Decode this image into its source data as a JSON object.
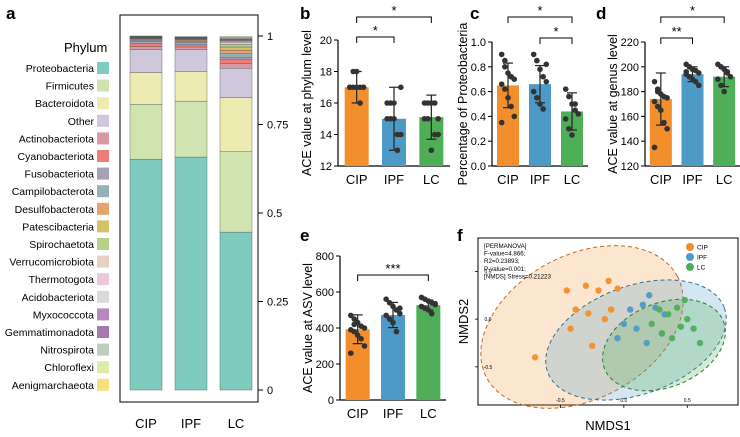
{
  "colors": {
    "CIP": "#F28E2B",
    "IPF": "#4E9AC6",
    "LC": "#4FAE58"
  },
  "chart_data": [
    {
      "panel": "a",
      "type": "bar",
      "stacked": true,
      "legend_title": "Phylum",
      "categories": [
        "CIP",
        "IPF",
        "LC"
      ],
      "ylim": [
        0,
        1
      ],
      "yticks": [
        0,
        0.25,
        0.5,
        0.75,
        1
      ],
      "ytick_labels": [
        "0",
        "0.25",
        "0.5",
        "0.75",
        "1"
      ],
      "series": [
        {
          "name": "Proteobacteria",
          "color": "#7FCBC0",
          "values": [
            0.652,
            0.658,
            0.446
          ]
        },
        {
          "name": "Firmicutes",
          "color": "#CFE4B0",
          "values": [
            0.155,
            0.158,
            0.227
          ]
        },
        {
          "name": "Bacteroidota",
          "color": "#EDEBB2",
          "values": [
            0.09,
            0.083,
            0.153
          ]
        },
        {
          "name": "Other",
          "color": "#CFC8DC",
          "values": [
            0.065,
            0.062,
            0.083
          ]
        },
        {
          "name": "Actinobacteriota",
          "color": "#D999A3",
          "values": [
            0.008,
            0.008,
            0.013
          ]
        },
        {
          "name": "Cyanobacteriota",
          "color": "#EC7E76",
          "values": [
            0.008,
            0.006,
            0.011
          ]
        },
        {
          "name": "Fusobacteriota",
          "color": "#A8A0B8",
          "values": [
            0.006,
            0.006,
            0.007
          ]
        },
        {
          "name": "Campilobacterota",
          "color": "#97AFB6",
          "values": [
            0.004,
            0.004,
            0.01
          ]
        },
        {
          "name": "Desulfobacterota",
          "color": "#E5A56A",
          "values": [
            0.002,
            0.003,
            0.01
          ]
        },
        {
          "name": "Patescibacteria",
          "color": "#D6C06A",
          "values": [
            0.002,
            0.002,
            0.009
          ]
        },
        {
          "name": "Spirochaetota",
          "color": "#B7D18B",
          "values": [
            0.001,
            0.001,
            0.007
          ]
        },
        {
          "name": "Verrucomicrobiota",
          "color": "#E8D1C2",
          "values": [
            0.001,
            0.001,
            0.005
          ]
        },
        {
          "name": "Thermotogota",
          "color": "#EBC9DC",
          "values": [
            0.001,
            0.001,
            0.003
          ]
        },
        {
          "name": "Acidobacteriota",
          "color": "#D9D9D9",
          "values": [
            0.001,
            0.001,
            0.003
          ]
        },
        {
          "name": "Myxococcota",
          "color": "#BA87BE",
          "values": [
            0.001,
            0.001,
            0.002
          ]
        },
        {
          "name": "Gemmatimonadota",
          "color": "#A67AAE",
          "values": [
            0.001,
            0.001,
            0.002
          ]
        },
        {
          "name": "Nitrospirota",
          "color": "#BFCCC0",
          "values": [
            0.001,
            0.001,
            0.002
          ]
        },
        {
          "name": "Chloroflexi",
          "color": "#DDEBA9",
          "values": [
            0.001,
            0.001,
            0.002
          ]
        },
        {
          "name": "Aenigmarchaeota",
          "color": "#F8E07F",
          "values": [
            0.0,
            0.0,
            0.003
          ]
        }
      ]
    },
    {
      "panel": "b",
      "type": "bar",
      "ylabel": "ACE value at phylum level",
      "categories": [
        "CIP",
        "IPF",
        "LC"
      ],
      "values": [
        17.0,
        15.0,
        15.1
      ],
      "errors": [
        1.0,
        2.0,
        1.4
      ],
      "ylim": [
        12,
        20
      ],
      "yticks": [
        12,
        14,
        16,
        18,
        20
      ],
      "ytick_labels": [
        "12",
        "14",
        "16",
        "18",
        "20"
      ],
      "points": [
        [
          17,
          17,
          17,
          17,
          17,
          17,
          18,
          18,
          16,
          17
        ],
        [
          15,
          15,
          15,
          14,
          14,
          16,
          16,
          16,
          13,
          17
        ],
        [
          15,
          16,
          16,
          14,
          14,
          16,
          15,
          13,
          16,
          15
        ]
      ],
      "sig": [
        {
          "from": 0,
          "to": 1,
          "label": "*"
        },
        {
          "from": 0,
          "to": 2,
          "label": "*"
        }
      ]
    },
    {
      "panel": "c",
      "type": "bar",
      "ylabel": "Percentage of Proteobacteria",
      "categories": [
        "CIP",
        "IPF",
        "LC"
      ],
      "values": [
        0.65,
        0.66,
        0.44
      ],
      "errors": [
        0.18,
        0.15,
        0.15
      ],
      "ylim": [
        0,
        1
      ],
      "yticks": [
        0,
        0.2,
        0.4,
        0.6,
        0.8,
        1
      ],
      "ytick_labels": [
        "0.0",
        "0.2",
        "0.4",
        "0.6",
        "0.8",
        "1.0"
      ],
      "points": [
        [
          0.9,
          0.8,
          0.75,
          0.72,
          0.7,
          0.66,
          0.62,
          0.55,
          0.48,
          0.4,
          0.35,
          0.85
        ],
        [
          0.9,
          0.85,
          0.78,
          0.72,
          0.68,
          0.6,
          0.55,
          0.5,
          0.46,
          0.82
        ],
        [
          0.62,
          0.56,
          0.5,
          0.45,
          0.42,
          0.38,
          0.3,
          0.25,
          0.5
        ]
      ],
      "sig": [
        {
          "from": 1,
          "to": 2,
          "label": "*"
        },
        {
          "from": 0,
          "to": 2,
          "label": "*"
        }
      ]
    },
    {
      "panel": "d",
      "type": "bar",
      "ylabel": "ACE value at genus level",
      "categories": [
        "CIP",
        "IPF",
        "LC"
      ],
      "values": [
        174,
        194,
        192
      ],
      "errors": [
        21,
        6,
        8
      ],
      "ylim": [
        120,
        220
      ],
      "yticks": [
        120,
        140,
        160,
        180,
        200,
        220
      ],
      "ytick_labels": [
        "120",
        "140",
        "160",
        "180",
        "200",
        "220"
      ],
      "points": [
        [
          188,
          182,
          178,
          176,
          175,
          172,
          168,
          165,
          155,
          150,
          135,
          180
        ],
        [
          202,
          200,
          198,
          197,
          195,
          194,
          192,
          190,
          188,
          185,
          196
        ],
        [
          202,
          200,
          198,
          195,
          192,
          190,
          185,
          180,
          196
        ]
      ],
      "sig": [
        {
          "from": 0,
          "to": 1,
          "label": "**"
        },
        {
          "from": 0,
          "to": 2,
          "label": "*"
        }
      ]
    },
    {
      "panel": "e",
      "type": "bar",
      "ylabel": "ACE value at ASV level",
      "categories": [
        "CIP",
        "IPF",
        "LC"
      ],
      "values": [
        393,
        472,
        527
      ],
      "errors": [
        80,
        70,
        28
      ],
      "ylim": [
        0,
        800
      ],
      "yticks": [
        0,
        200,
        400,
        600,
        800
      ],
      "ytick_labels": [
        "0",
        "200",
        "400",
        "600",
        "800"
      ],
      "points": [
        [
          470,
          450,
          430,
          410,
          400,
          390,
          380,
          360,
          340,
          300,
          260,
          420
        ],
        [
          560,
          540,
          520,
          500,
          480,
          470,
          450,
          430,
          380,
          510
        ],
        [
          570,
          560,
          550,
          540,
          530,
          520,
          510,
          500,
          480,
          535
        ]
      ],
      "sig": [
        {
          "from": 0,
          "to": 2,
          "label": "***"
        }
      ]
    },
    {
      "panel": "f",
      "type": "scatter",
      "xlabel": "NMDS1",
      "ylabel": "NMDS2",
      "stats": [
        "[PERMANOVA]",
        "F-value=4.866;",
        "R2=0.23893;",
        "P-value=0.001;",
        "[NMDS] Stress=0.21223"
      ],
      "xticks": [
        -0.5,
        0,
        0.5
      ],
      "xtick_labels": [
        "-0.5",
        "0.0",
        "0.5"
      ],
      "yticks": [
        0.5,
        0,
        -0.5
      ],
      "ytick_labels": [
        "0.5",
        "0.0",
        "-0.5"
      ],
      "xlim": [
        -1.15,
        0.9
      ],
      "ylim": [
        -0.9,
        0.85
      ],
      "series": [
        {
          "name": "CIP",
          "x": [
            -0.45,
            -0.3,
            -0.2,
            -0.12,
            -0.05,
            -0.38,
            -0.28,
            -0.15,
            -0.42,
            -0.1,
            -0.25,
            -0.7
          ],
          "y": [
            0.3,
            0.35,
            0.3,
            0.4,
            0.32,
            0.1,
            0.06,
            0.0,
            -0.1,
            0.1,
            -0.28,
            -0.4
          ]
        },
        {
          "name": "IPF",
          "x": [
            0.05,
            0.15,
            0.25,
            0.32,
            0.0,
            0.1,
            0.2,
            0.3,
            -0.05,
            0.18
          ],
          "y": [
            0.1,
            0.15,
            0.12,
            0.05,
            -0.05,
            -0.1,
            0.25,
            -0.15,
            -0.2,
            -0.25
          ]
        },
        {
          "name": "LC",
          "x": [
            0.28,
            0.35,
            0.42,
            0.5,
            0.55,
            0.3,
            0.38,
            0.45,
            0.6,
            0.22,
            0.48
          ],
          "y": [
            0.1,
            0.05,
            0.12,
            0.0,
            -0.1,
            -0.15,
            -0.2,
            -0.08,
            -0.25,
            -0.05,
            0.2
          ]
        }
      ]
    }
  ]
}
